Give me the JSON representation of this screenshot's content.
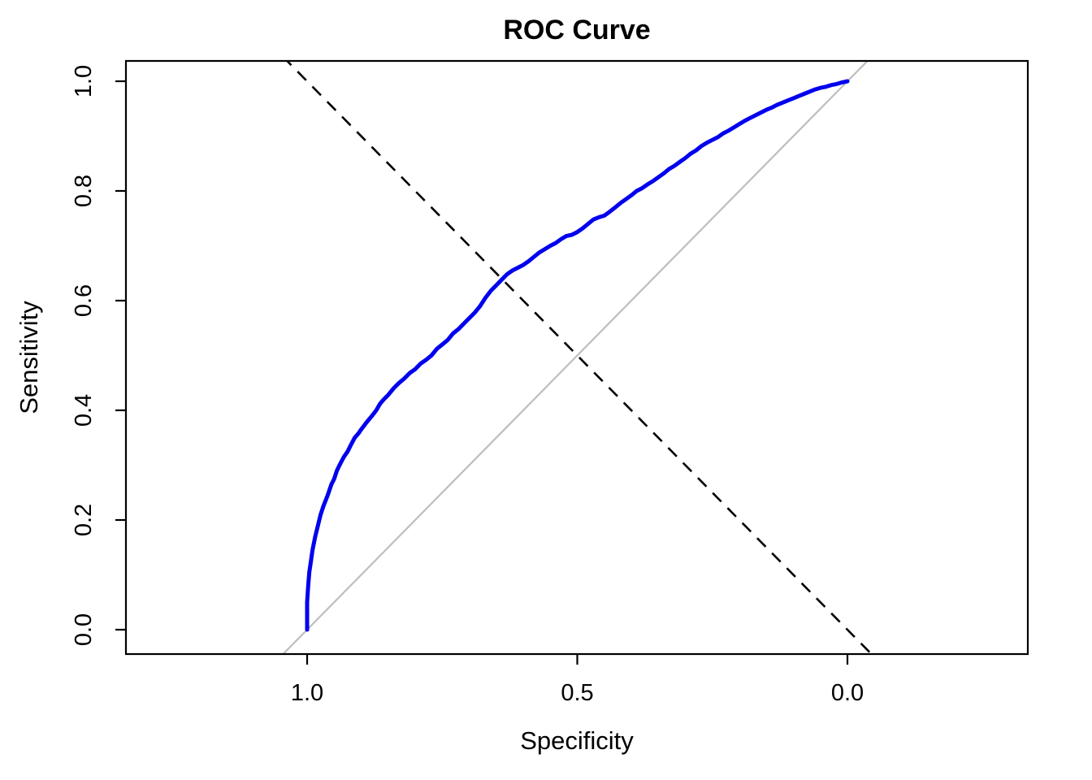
{
  "title": "ROC Curve",
  "chart_data": {
    "type": "line",
    "title": "ROC Curve",
    "xlabel": "Specificity",
    "ylabel": "Sensitivity",
    "x_axis": {
      "reversed": true,
      "range": [
        1.0,
        0.0
      ],
      "ticks": [
        1.0,
        0.5,
        0.0
      ],
      "tick_labels": [
        "1.0",
        "0.5",
        "0.0"
      ]
    },
    "y_axis": {
      "range": [
        0.0,
        1.0
      ],
      "ticks": [
        0.0,
        0.2,
        0.4,
        0.6,
        0.8,
        1.0
      ],
      "tick_labels": [
        "0.0",
        "0.2",
        "0.4",
        "0.6",
        "0.8",
        "1.0"
      ]
    },
    "grid": false,
    "legend": "none",
    "colors": {
      "roc_curve": "#0000EE",
      "chance_line": "#BEBEBE",
      "dashed_line": "#000000",
      "box": "#000000"
    },
    "series": [
      {
        "name": "ROC curve (Sensitivity vs Specificity)",
        "color": "#0000EE",
        "points": [
          [
            1.0,
            0.0
          ],
          [
            1.0,
            0.05
          ],
          [
            0.998,
            0.08
          ],
          [
            0.996,
            0.105
          ],
          [
            0.993,
            0.125
          ],
          [
            0.99,
            0.145
          ],
          [
            0.985,
            0.17
          ],
          [
            0.98,
            0.19
          ],
          [
            0.975,
            0.21
          ],
          [
            0.97,
            0.225
          ],
          [
            0.962,
            0.245
          ],
          [
            0.955,
            0.265
          ],
          [
            0.95,
            0.275
          ],
          [
            0.945,
            0.29
          ],
          [
            0.94,
            0.3
          ],
          [
            0.932,
            0.315
          ],
          [
            0.925,
            0.325
          ],
          [
            0.92,
            0.335
          ],
          [
            0.912,
            0.35
          ],
          [
            0.905,
            0.358
          ],
          [
            0.9,
            0.365
          ],
          [
            0.89,
            0.378
          ],
          [
            0.88,
            0.39
          ],
          [
            0.872,
            0.4
          ],
          [
            0.865,
            0.412
          ],
          [
            0.858,
            0.42
          ],
          [
            0.85,
            0.428
          ],
          [
            0.84,
            0.44
          ],
          [
            0.83,
            0.45
          ],
          [
            0.82,
            0.458
          ],
          [
            0.81,
            0.468
          ],
          [
            0.8,
            0.475
          ],
          [
            0.79,
            0.485
          ],
          [
            0.78,
            0.492
          ],
          [
            0.77,
            0.5
          ],
          [
            0.76,
            0.512
          ],
          [
            0.75,
            0.52
          ],
          [
            0.74,
            0.528
          ],
          [
            0.73,
            0.54
          ],
          [
            0.72,
            0.548
          ],
          [
            0.71,
            0.558
          ],
          [
            0.7,
            0.568
          ],
          [
            0.69,
            0.578
          ],
          [
            0.68,
            0.59
          ],
          [
            0.67,
            0.605
          ],
          [
            0.66,
            0.618
          ],
          [
            0.65,
            0.628
          ],
          [
            0.64,
            0.638
          ],
          [
            0.63,
            0.648
          ],
          [
            0.62,
            0.655
          ],
          [
            0.61,
            0.66
          ],
          [
            0.6,
            0.665
          ],
          [
            0.59,
            0.672
          ],
          [
            0.58,
            0.68
          ],
          [
            0.57,
            0.688
          ],
          [
            0.56,
            0.694
          ],
          [
            0.55,
            0.7
          ],
          [
            0.54,
            0.705
          ],
          [
            0.53,
            0.712
          ],
          [
            0.52,
            0.718
          ],
          [
            0.51,
            0.72
          ],
          [
            0.5,
            0.725
          ],
          [
            0.49,
            0.732
          ],
          [
            0.48,
            0.74
          ],
          [
            0.47,
            0.748
          ],
          [
            0.46,
            0.752
          ],
          [
            0.45,
            0.755
          ],
          [
            0.44,
            0.762
          ],
          [
            0.43,
            0.77
          ],
          [
            0.42,
            0.778
          ],
          [
            0.41,
            0.785
          ],
          [
            0.4,
            0.792
          ],
          [
            0.39,
            0.8
          ],
          [
            0.38,
            0.805
          ],
          [
            0.37,
            0.812
          ],
          [
            0.36,
            0.818
          ],
          [
            0.35,
            0.825
          ],
          [
            0.34,
            0.832
          ],
          [
            0.33,
            0.84
          ],
          [
            0.32,
            0.846
          ],
          [
            0.31,
            0.853
          ],
          [
            0.3,
            0.86
          ],
          [
            0.29,
            0.868
          ],
          [
            0.28,
            0.874
          ],
          [
            0.27,
            0.882
          ],
          [
            0.26,
            0.888
          ],
          [
            0.25,
            0.893
          ],
          [
            0.24,
            0.898
          ],
          [
            0.23,
            0.905
          ],
          [
            0.22,
            0.91
          ],
          [
            0.21,
            0.916
          ],
          [
            0.2,
            0.922
          ],
          [
            0.19,
            0.928
          ],
          [
            0.18,
            0.933
          ],
          [
            0.17,
            0.938
          ],
          [
            0.16,
            0.943
          ],
          [
            0.15,
            0.948
          ],
          [
            0.14,
            0.952
          ],
          [
            0.13,
            0.957
          ],
          [
            0.12,
            0.961
          ],
          [
            0.11,
            0.965
          ],
          [
            0.1,
            0.969
          ],
          [
            0.09,
            0.973
          ],
          [
            0.08,
            0.977
          ],
          [
            0.07,
            0.981
          ],
          [
            0.06,
            0.985
          ],
          [
            0.05,
            0.988
          ],
          [
            0.04,
            0.99
          ],
          [
            0.03,
            0.993
          ],
          [
            0.02,
            0.995
          ],
          [
            0.01,
            0.998
          ],
          [
            0.0,
            1.0
          ]
        ]
      }
    ],
    "reference_lines": [
      {
        "name": "chance-line",
        "description": "solid gray chance diagonal, sensitivity = 1 - specificity",
        "style": "solid",
        "color": "#BEBEBE",
        "from": [
          1.1,
          -0.1
        ],
        "to": [
          -0.1,
          1.1
        ]
      },
      {
        "name": "dashed-diagonal",
        "description": "black dashed diagonal, sensitivity = specificity",
        "style": "dashed",
        "color": "#000000",
        "from": [
          1.1,
          1.1
        ],
        "to": [
          -0.1,
          -0.1
        ]
      }
    ]
  }
}
